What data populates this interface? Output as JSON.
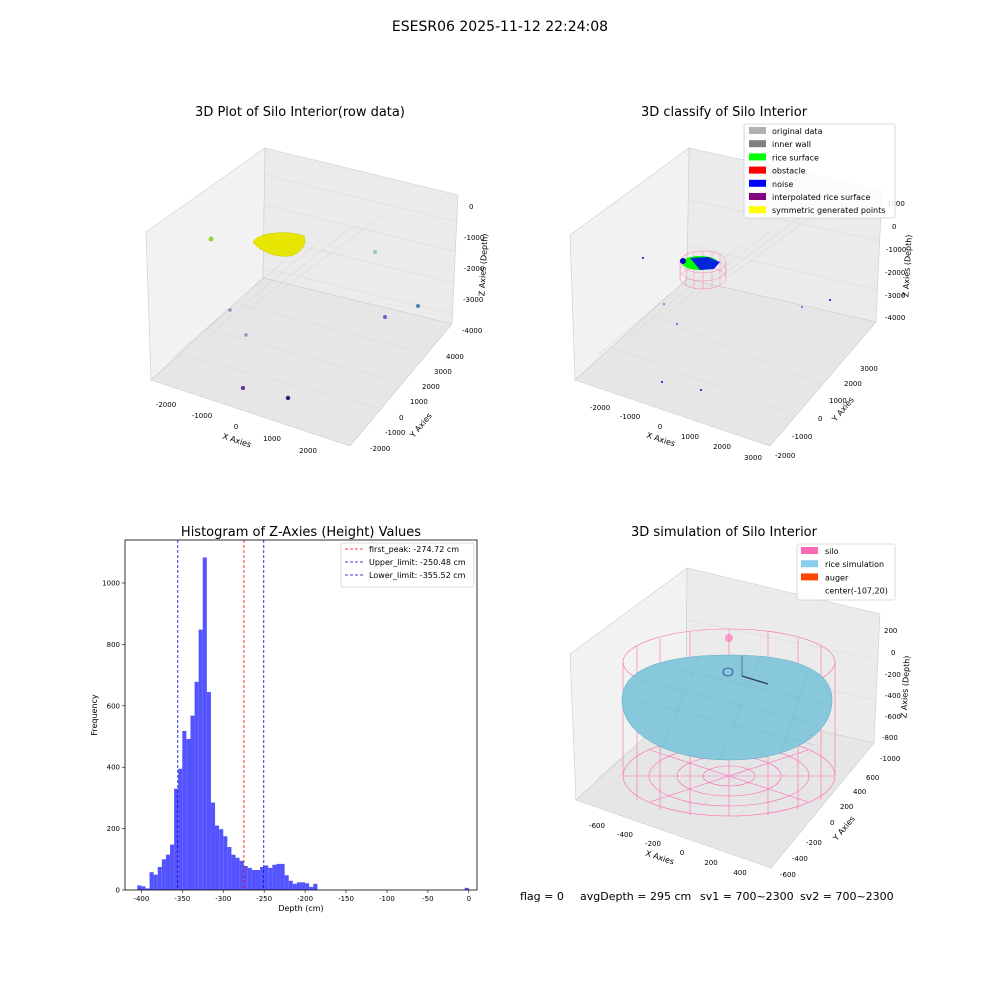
{
  "figure": {
    "suptitle": "ESESR06 2025-11-12 22:24:08",
    "status": {
      "flag": "flag = 0",
      "avg_depth": "avgDepth = 295 cm",
      "sv1": "sv1 = 700~2300",
      "sv2": "sv2 = 700~2300"
    }
  },
  "colors": {
    "hist_bar": "#4b4bff",
    "first_peak_line": "#ff0000",
    "limit_line": "#0000cc",
    "pane": "#f2f2f2",
    "rice_sim": "#88c8dd",
    "silo": "#ff69b4",
    "auger": "#ff4500",
    "rice_surface": "#00ff00",
    "noise": "#0000ff",
    "yellow_cloud": "#e6e600"
  },
  "chart_data": [
    {
      "type": "scatter",
      "title": "3D Plot of Silo Interior(row data)",
      "xlabel": "X Axies",
      "ylabel": "Y Axies",
      "zlabel": "Z Axies (Depth)",
      "x_ticks": [
        "-2000",
        "-1000",
        "0",
        "1000",
        "2000"
      ],
      "y_ticks": [
        "-2000",
        "-1000",
        "0",
        "1000",
        "2000",
        "3000",
        "4000"
      ],
      "z_ticks": [
        "0",
        "-1000",
        "-2000",
        "-3000",
        "-4000"
      ]
    },
    {
      "type": "scatter",
      "title": "3D classify of Silo Interior",
      "xlabel": "X Axies",
      "ylabel": "Y Axies",
      "zlabel": "Z Axies (Depth)",
      "x_ticks": [
        "-2000",
        "-1000",
        "0",
        "1000",
        "2000",
        "3000"
      ],
      "y_ticks": [
        "-2000",
        "-1000",
        "0",
        "1000",
        "2000",
        "3000"
      ],
      "z_ticks": [
        "1000",
        "0",
        "-1000",
        "-2000",
        "-3000",
        "-4000"
      ],
      "legend_position": "top-right",
      "legend": [
        {
          "label": "original data",
          "color": "#b0b0b0"
        },
        {
          "label": "inner wall",
          "color": "#808080"
        },
        {
          "label": "rice surface",
          "color": "#00ff00"
        },
        {
          "label": "obstacle",
          "color": "#ff0000"
        },
        {
          "label": "noise",
          "color": "#0000ff"
        },
        {
          "label": "interpolated rice surface",
          "color": "#800080"
        },
        {
          "label": "symmetric generated points",
          "color": "#ffff00"
        }
      ]
    },
    {
      "type": "bar",
      "title": "Histogram of Z-Axies (Height) Values",
      "xlabel": "Depth (cm)",
      "ylabel": "Frequency",
      "xlim": [
        -420,
        10
      ],
      "ylim": [
        0,
        1140
      ],
      "x_ticks": [
        -400,
        -350,
        -300,
        -250,
        -200,
        -150,
        -100,
        -50,
        0
      ],
      "y_ticks": [
        0,
        200,
        400,
        600,
        800,
        1000
      ],
      "bin_width": 5,
      "bins": [
        {
          "x": -405,
          "y": 15
        },
        {
          "x": -400,
          "y": 12
        },
        {
          "x": -395,
          "y": 5
        },
        {
          "x": -390,
          "y": 58
        },
        {
          "x": -385,
          "y": 50
        },
        {
          "x": -380,
          "y": 75
        },
        {
          "x": -375,
          "y": 100
        },
        {
          "x": -370,
          "y": 115
        },
        {
          "x": -365,
          "y": 148
        },
        {
          "x": -360,
          "y": 330
        },
        {
          "x": -355,
          "y": 395
        },
        {
          "x": -350,
          "y": 518
        },
        {
          "x": -345,
          "y": 492
        },
        {
          "x": -340,
          "y": 568
        },
        {
          "x": -335,
          "y": 678
        },
        {
          "x": -330,
          "y": 848
        },
        {
          "x": -325,
          "y": 1083
        },
        {
          "x": -320,
          "y": 645
        },
        {
          "x": -315,
          "y": 285
        },
        {
          "x": -310,
          "y": 210
        },
        {
          "x": -305,
          "y": 198
        },
        {
          "x": -300,
          "y": 175
        },
        {
          "x": -295,
          "y": 140
        },
        {
          "x": -290,
          "y": 115
        },
        {
          "x": -285,
          "y": 105
        },
        {
          "x": -280,
          "y": 95
        },
        {
          "x": -275,
          "y": 78
        },
        {
          "x": -270,
          "y": 72
        },
        {
          "x": -265,
          "y": 65
        },
        {
          "x": -260,
          "y": 65
        },
        {
          "x": -255,
          "y": 75
        },
        {
          "x": -250,
          "y": 80
        },
        {
          "x": -245,
          "y": 72
        },
        {
          "x": -240,
          "y": 82
        },
        {
          "x": -235,
          "y": 85
        },
        {
          "x": -230,
          "y": 85
        },
        {
          "x": -225,
          "y": 48
        },
        {
          "x": -220,
          "y": 30
        },
        {
          "x": -215,
          "y": 20
        },
        {
          "x": -210,
          "y": 25
        },
        {
          "x": -205,
          "y": 25
        },
        {
          "x": -200,
          "y": 22
        },
        {
          "x": -195,
          "y": 10
        },
        {
          "x": -190,
          "y": 20
        },
        {
          "x": -185,
          "y": 0
        },
        {
          "x": -5,
          "y": 7
        }
      ],
      "lines": [
        {
          "label": "first_peak: -274.72 cm",
          "x": -274.72,
          "color": "#ff0000"
        },
        {
          "label": "Upper_limit: -250.48 cm",
          "x": -250.48,
          "color": "#0000cc"
        },
        {
          "label": "Lower_limit: -355.52 cm",
          "x": -355.52,
          "color": "#0000cc"
        }
      ],
      "legend_position": "top-right"
    },
    {
      "type": "scatter",
      "title": "3D simulation of Silo Interior",
      "xlabel": "X Axies",
      "ylabel": "Y Axies",
      "zlabel": "Z Axies (Depth)",
      "x_ticks": [
        "-600",
        "-400",
        "-200",
        "0",
        "200",
        "400"
      ],
      "y_ticks": [
        "-600",
        "-400",
        "-200",
        "0",
        "200",
        "400",
        "600"
      ],
      "z_ticks": [
        "200",
        "0",
        "-200",
        "-400",
        "-600",
        "-800",
        "-1000"
      ],
      "legend_position": "top-right",
      "legend": [
        {
          "label": "silo",
          "color": "#ff69b4"
        },
        {
          "label": "rice simulation",
          "color": "#87ceeb"
        },
        {
          "label": "auger",
          "color": "#ff4500"
        },
        {
          "label": "center(-107,20)",
          "color": ""
        }
      ]
    }
  ]
}
